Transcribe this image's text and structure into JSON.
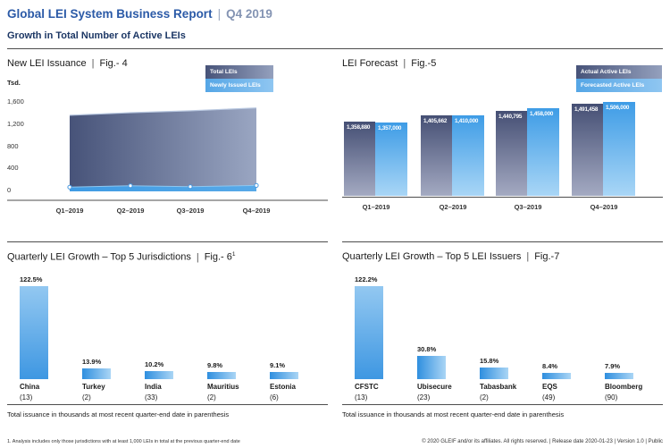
{
  "ui": {
    "pipe": "|"
  },
  "header": {
    "title": "Global LEI System Business Report",
    "period": "Q4 2019",
    "subtitle": "Growth in Total Number of Active LEIs"
  },
  "colors": {
    "accent_blue": "#2b5aa7",
    "slate_dark": "#475379",
    "slate_light": "#9aa6c2",
    "bar_blue": "#3e97e2",
    "bar_blue_light": "#aad5f5"
  },
  "chart_data": [
    {
      "id": "fig4",
      "type": "area",
      "title": "New LEI Issuance",
      "fig_label": "Fig.- 4",
      "unit": "Tsd.",
      "categories": [
        "Q1–2019",
        "Q2–2019",
        "Q3–2019",
        "Q4–2019"
      ],
      "series": [
        {
          "name": "Total LEIs",
          "values": [
            1358.88,
            1405.662,
            1440.795,
            1491.458
          ]
        },
        {
          "name": "Newly Issued LEIs",
          "values": [
            60,
            85,
            70,
            90
          ],
          "approximate": true
        }
      ],
      "ylabel": "Tsd.",
      "ylim": [
        0,
        1600
      ],
      "yticks": [
        "1,600",
        "1,200",
        "800",
        "400",
        "0"
      ],
      "ytick_values": [
        1600,
        1200,
        800,
        400,
        0
      ],
      "legend_position": "top-right",
      "grid": false
    },
    {
      "id": "fig5",
      "type": "bar",
      "title": "LEI Forecast",
      "fig_label": "Fig.-5",
      "categories": [
        "Q1–2019",
        "Q2–2019",
        "Q3–2019",
        "Q4–2019"
      ],
      "series": [
        {
          "name": "Actual Active LEIs",
          "values": [
            1358880,
            1405662,
            1440795,
            1491458
          ],
          "labels": [
            "1,358,880",
            "1,405,662",
            "1,440,795",
            "1,491,458"
          ]
        },
        {
          "name": "Forecasted Active LEIs",
          "values": [
            1357000,
            1410000,
            1458000,
            1506000
          ],
          "labels": [
            "1,357,000",
            "1,410,000",
            "1,458,000",
            "1,506,000"
          ]
        }
      ],
      "axis_truncated": true,
      "legend_position": "top-right",
      "grid": false
    },
    {
      "id": "fig6",
      "type": "bar",
      "title": "Quarterly LEI Growth – Top 5 Jurisdictions",
      "fig_label": "Fig.- 6",
      "fig_superscript": "1",
      "categories": [
        "China",
        "Turkey",
        "India",
        "Mauritius",
        "Estonia"
      ],
      "category_totals": [
        "(13)",
        "(2)",
        "(33)",
        "(2)",
        "(6)"
      ],
      "values": [
        122.5,
        13.9,
        10.2,
        9.8,
        9.1
      ],
      "value_labels": [
        "122.5%",
        "13.9%",
        "10.2%",
        "9.8%",
        "9.1%"
      ],
      "ylim": [
        0,
        122.5
      ],
      "grid": false,
      "note": "Total issuance in thousands at most recent quarter-end date in parenthesis"
    },
    {
      "id": "fig7",
      "type": "bar",
      "title": "Quarterly LEI Growth – Top 5 LEI Issuers",
      "fig_label": "Fig.-7",
      "categories": [
        "CFSTC",
        "Ubisecure",
        "Tabasbank",
        "EQS",
        "Bloomberg"
      ],
      "category_totals": [
        "(13)",
        "(23)",
        "(2)",
        "(49)",
        "(90)"
      ],
      "values": [
        122.2,
        30.8,
        15.8,
        8.4,
        7.9
      ],
      "value_labels": [
        "122.2%",
        "30.8%",
        "15.8%",
        "8.4%",
        "7.9%"
      ],
      "ylim": [
        0,
        122.2
      ],
      "grid": false,
      "note": "Total issuance in thousands at most recent quarter-end date in parenthesis"
    }
  ],
  "footer": {
    "footnote": "1. Analysis includes only those jurisdictions with at least 1,000 LEIs in total at the previous quarter-end date",
    "copyright": "© 2020 GLEIF and/or its affiliates. All rights reserved.  |  Release date 2020-01-23  |  Version 1.0  |  Public"
  }
}
